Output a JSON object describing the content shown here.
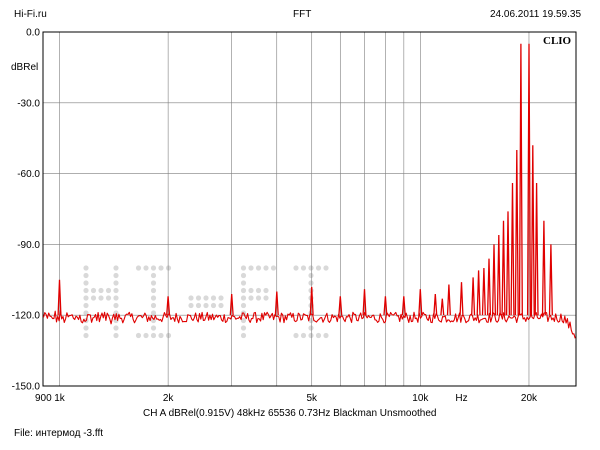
{
  "header": {
    "left": "Hi-Fi.ru",
    "center": "FFT",
    "right": "24.06.2011 19.59.35"
  },
  "footer": {
    "params": "CH A  dBRel(0.915V)  48kHz  65536  0.73Hz  Blackman  Unsmoothed",
    "file": "File: интермод -3.fft"
  },
  "logo": "CLIO",
  "watermark": "HI-FI",
  "colors": {
    "trace": "#e00000",
    "grid": "#7f7f7f",
    "watermark": "#d9d9d9",
    "axis": "#000000"
  },
  "chart_data": {
    "type": "line",
    "title": "FFT",
    "xlabel": "Hz",
    "ylabel": "dBRel",
    "x_scale": "log",
    "xlim": [
      900,
      27000
    ],
    "ylim": [
      -150,
      0
    ],
    "grid": true,
    "y_ticks": [
      "0.0",
      "-30.0",
      "-60.0",
      "-90.0",
      "-120.0",
      "-150.0"
    ],
    "y_tick_values": [
      0,
      -30,
      -60,
      -90,
      -120,
      -150
    ],
    "x_tick_labels": [
      {
        "label": "900",
        "value": 900
      },
      {
        "label": "1k",
        "value": 1000
      },
      {
        "label": "2k",
        "value": 2000
      },
      {
        "label": "5k",
        "value": 5000
      },
      {
        "label": "10k",
        "value": 10000
      },
      {
        "label": "Hz",
        "value": 13000
      },
      {
        "label": "20k",
        "value": 20000
      }
    ],
    "x_grid_lines": [
      1000,
      2000,
      3000,
      4000,
      5000,
      6000,
      7000,
      8000,
      9000,
      10000,
      20000
    ],
    "noise_floor_db": -121,
    "series": [
      {
        "peaks": [
          {
            "x": 1000,
            "y": -105
          },
          {
            "x": 2000,
            "y": -112
          },
          {
            "x": 3000,
            "y": -111
          },
          {
            "x": 4000,
            "y": -110
          },
          {
            "x": 5000,
            "y": -108
          },
          {
            "x": 6000,
            "y": -112
          },
          {
            "x": 7000,
            "y": -109
          },
          {
            "x": 8000,
            "y": -112
          },
          {
            "x": 9000,
            "y": -112
          },
          {
            "x": 10000,
            "y": -109
          },
          {
            "x": 11000,
            "y": -111
          },
          {
            "x": 11500,
            "y": -113
          },
          {
            "x": 12000,
            "y": -107
          },
          {
            "x": 13000,
            "y": -106
          },
          {
            "x": 14000,
            "y": -104
          },
          {
            "x": 14500,
            "y": -101
          },
          {
            "x": 15000,
            "y": -100
          },
          {
            "x": 15500,
            "y": -96
          },
          {
            "x": 16000,
            "y": -90
          },
          {
            "x": 16500,
            "y": -86
          },
          {
            "x": 17000,
            "y": -80
          },
          {
            "x": 17500,
            "y": -76
          },
          {
            "x": 18000,
            "y": -64
          },
          {
            "x": 18500,
            "y": -50
          },
          {
            "x": 19000,
            "y": -5
          },
          {
            "x": 20000,
            "y": -5
          },
          {
            "x": 20500,
            "y": -48
          },
          {
            "x": 21000,
            "y": -64
          },
          {
            "x": 22000,
            "y": -80
          },
          {
            "x": 23000,
            "y": -90
          }
        ]
      }
    ]
  }
}
